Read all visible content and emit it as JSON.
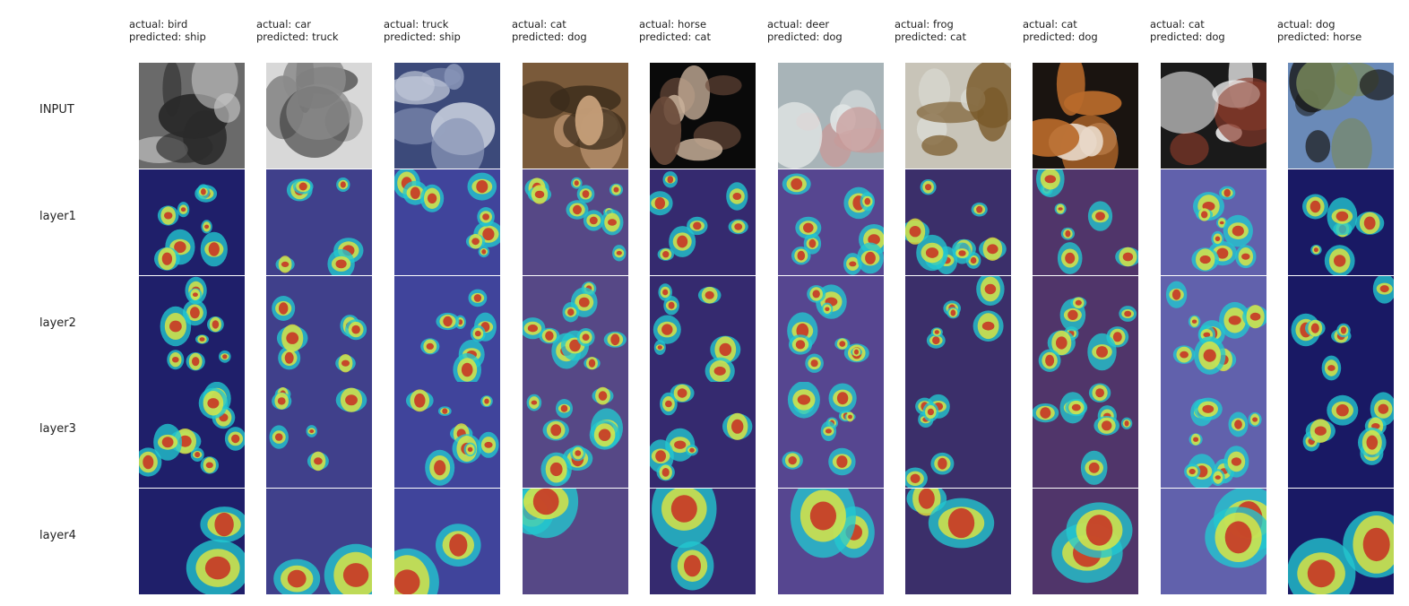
{
  "figure": {
    "row_labels": [
      "INPUT",
      "layer1",
      "layer2",
      "layer3",
      "layer4"
    ],
    "columns": [
      {
        "actual": "actual: bird",
        "predicted": "predicted: ship"
      },
      {
        "actual": "actual: car",
        "predicted": "predicted: truck"
      },
      {
        "actual": "actual: truck",
        "predicted": "predicted: ship"
      },
      {
        "actual": "actual: cat",
        "predicted": "predicted: dog"
      },
      {
        "actual": "actual: horse",
        "predicted": "predicted: cat"
      },
      {
        "actual": "actual: deer",
        "predicted": "predicted: dog"
      },
      {
        "actual": "actual: frog",
        "predicted": "predicted: cat"
      },
      {
        "actual": "actual: cat",
        "predicted": "predicted: dog"
      },
      {
        "actual": "actual: cat",
        "predicted": "predicted: dog"
      },
      {
        "actual": "actual: dog",
        "predicted": "predicted: horse"
      }
    ],
    "colors": {
      "background": "#ffffff",
      "heatmap_low": "#1a1a8c",
      "heatmap_mid": "#22c8d0",
      "heatmap_mid2": "#e8e83a",
      "heatmap_high": "#c81e1e"
    },
    "input_palettes": [
      [
        "#6a6a6a",
        "#2a2a2a",
        "#c8c8c8"
      ],
      [
        "#d8d8d8",
        "#8a8a8a",
        "#3a3a3a"
      ],
      [
        "#3c4a7a",
        "#8a96b8",
        "#c0c8d8"
      ],
      [
        "#7a5a3a",
        "#c8a07a",
        "#3a2a1a"
      ],
      [
        "#0a0a0a",
        "#6a4a3a",
        "#c8b09a"
      ],
      [
        "#a8b4b8",
        "#c89a98",
        "#e0e4e4"
      ],
      [
        "#c8c4b8",
        "#7a5a2a",
        "#d8d8d0"
      ],
      [
        "#1a1410",
        "#b86a2a",
        "#e8d8c8"
      ],
      [
        "#1a1a1a",
        "#e8e8e8",
        "#8a3a2a"
      ],
      [
        "#6a8ab8",
        "#1a1a1a",
        "#7a8a5a"
      ]
    ]
  }
}
